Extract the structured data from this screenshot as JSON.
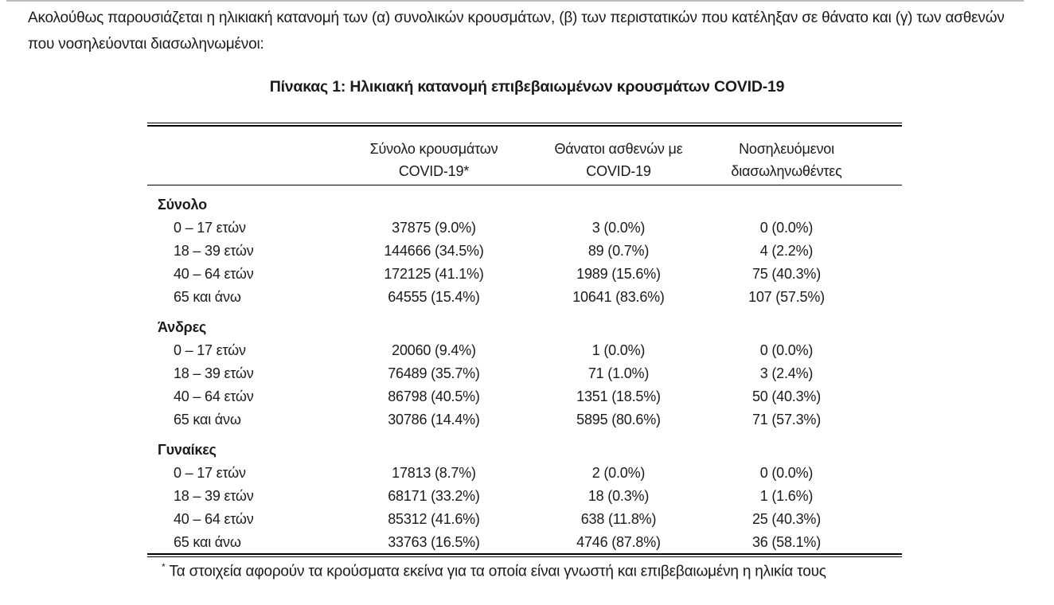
{
  "page": {
    "intro": "Ακολούθως παρουσιάζεται η ηλικιακή κατανομή των (α) συνολικών κρουσμάτων, (β) των περιστατικών που κατέληξαν σε θάνατο και (γ) των ασθενών που νοσηλεύονται διασωληνωμένοι:",
    "table_title": "Πίνακας 1: Ηλικιακή κατανομή επιβεβαιωμένων κρουσμάτων COVID-19",
    "footnote_marker": "*",
    "footnote_text": "Τα στοιχεία αφορούν τα κρούσματα εκείνα για τα οποία είναι γνωστή και επιβεβαιωμένη η ηλικία τους"
  },
  "table": {
    "headers": [
      {
        "line1": "",
        "line2": ""
      },
      {
        "line1": "Σύνολο κρουσμάτων",
        "line2": "COVID-19*"
      },
      {
        "line1": "Θάνατοι ασθενών με",
        "line2": "COVID-19"
      },
      {
        "line1": "Νοσηλευόμενοι",
        "line2": "διασωληνωθέντες"
      }
    ],
    "sections": [
      {
        "label": "Σύνολο",
        "rows": [
          {
            "age": "0 – 17 ετών",
            "cases": "37875 (9.0%)",
            "deaths": "3 (0.0%)",
            "intubated": "0 (0.0%)"
          },
          {
            "age": "18 – 39 ετών",
            "cases": "144666 (34.5%)",
            "deaths": "89 (0.7%)",
            "intubated": "4 (2.2%)"
          },
          {
            "age": "40 – 64 ετών",
            "cases": "172125 (41.1%)",
            "deaths": "1989 (15.6%)",
            "intubated": "75 (40.3%)"
          },
          {
            "age": "65 και άνω",
            "cases": "64555 (15.4%)",
            "deaths": "10641 (83.6%)",
            "intubated": "107 (57.5%)"
          }
        ]
      },
      {
        "label": "Άνδρες",
        "rows": [
          {
            "age": "0 – 17 ετών",
            "cases": "20060 (9.4%)",
            "deaths": "1 (0.0%)",
            "intubated": "0 (0.0%)"
          },
          {
            "age": "18 – 39 ετών",
            "cases": "76489 (35.7%)",
            "deaths": "71 (1.0%)",
            "intubated": "3 (2.4%)"
          },
          {
            "age": "40 – 64 ετών",
            "cases": "86798 (40.5%)",
            "deaths": "1351 (18.5%)",
            "intubated": "50 (40.3%)"
          },
          {
            "age": "65 και άνω",
            "cases": "30786 (14.4%)",
            "deaths": "5895 (80.6%)",
            "intubated": "71 (57.3%)"
          }
        ]
      },
      {
        "label": "Γυναίκες",
        "rows": [
          {
            "age": "0 – 17 ετών",
            "cases": "17813 (8.7%)",
            "deaths": "2 (0.0%)",
            "intubated": "0 (0.0%)"
          },
          {
            "age": "18 – 39 ετών",
            "cases": "68171 (33.2%)",
            "deaths": "18 (0.3%)",
            "intubated": "1 (1.6%)"
          },
          {
            "age": "40 – 64 ετών",
            "cases": "85312 (41.6%)",
            "deaths": "638 (11.8%)",
            "intubated": "25 (40.3%)"
          },
          {
            "age": "65 και άνω",
            "cases": "33763 (16.5%)",
            "deaths": "4746 (87.8%)",
            "intubated": "36 (58.1%)"
          }
        ]
      }
    ]
  },
  "colors": {
    "text": "#1b1b1b",
    "rule": "#000000",
    "page_edge": "#bcbcbc",
    "background": "#ffffff"
  }
}
